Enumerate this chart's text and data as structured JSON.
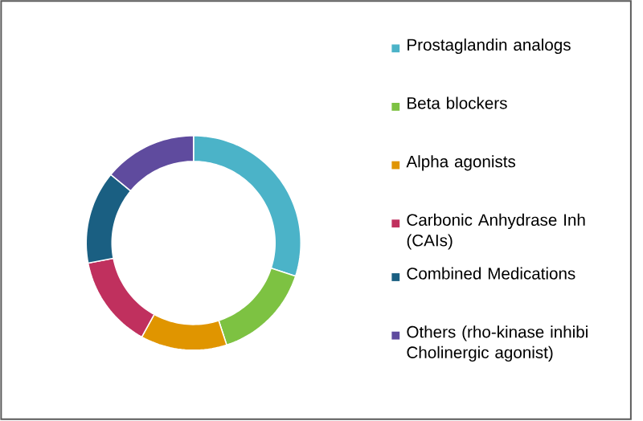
{
  "chart_data": {
    "type": "donut",
    "categories": [
      "Prostaglandin analogs",
      "Beta blockers",
      "Alpha agonists",
      "Carbonic Anhydrase Inh\n(CAIs)",
      "Combined Medications",
      "Others (rho-kinase inhibi\nCholinergic agonist)"
    ],
    "values": [
      30,
      15,
      13,
      14,
      14,
      14
    ],
    "colors": [
      "#4bb3c8",
      "#7dc242",
      "#e09500",
      "#c0305e",
      "#1a5f82",
      "#5f4b9e"
    ],
    "legend": "right"
  }
}
